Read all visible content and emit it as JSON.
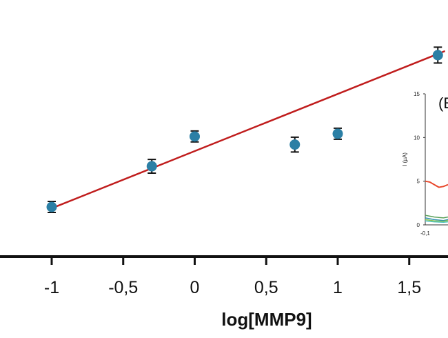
{
  "chart_data": [
    {
      "type": "scatter",
      "xlabel": "log[MMP9]",
      "ylabel": "",
      "xlim": [
        -1.36,
        1.75
      ],
      "ylim": [
        4.4,
        12.7
      ],
      "x_ticks": [
        "-1",
        "-0,5",
        "0",
        "0,5",
        "1",
        "1,5"
      ],
      "x_tick_values": [
        -1,
        -0.5,
        0,
        0.5,
        1,
        1.5
      ],
      "series": [
        {
          "x": [
            -1,
            -0.3,
            0,
            0.7,
            1,
            1.7
          ],
          "y": [
            6.1,
            7.6,
            8.7,
            8.4,
            8.8,
            11.7
          ],
          "error": [
            0.05,
            0.1,
            0.05,
            0.12,
            0.05,
            0.14
          ],
          "color": "#2b7fa5"
        }
      ],
      "fit_line": {
        "x": [
          -1,
          1.75
        ],
        "y": [
          6.05,
          11.85
        ],
        "color": "#c01d1d"
      },
      "grid": false
    },
    {
      "type": "line",
      "panel_label": "(E",
      "ylabel": "I (µA)",
      "ylim": [
        0,
        15
      ],
      "y_ticks": [
        "0",
        "5",
        "10",
        "15"
      ],
      "y_tick_values": [
        0,
        5,
        10,
        15
      ],
      "x_ticks": [
        "-0,1"
      ],
      "series": [
        {
          "x": [
            -0.1,
            -0.08,
            -0.06,
            -0.04,
            -0.02,
            0.0
          ],
          "y": [
            5.0,
            4.9,
            4.6,
            4.3,
            4.4,
            4.6
          ],
          "color": "#e8472b"
        },
        {
          "x": [
            -0.1,
            -0.06,
            -0.02,
            0.0
          ],
          "y": [
            1.1,
            0.9,
            0.8,
            0.9
          ],
          "color": "#5aa05a"
        },
        {
          "x": [
            -0.1,
            -0.06,
            -0.02,
            0.0
          ],
          "y": [
            0.8,
            0.6,
            0.5,
            0.6
          ],
          "color": "#2f8fb0"
        },
        {
          "x": [
            -0.1,
            -0.06,
            -0.02,
            0.0
          ],
          "y": [
            0.6,
            0.45,
            0.4,
            0.5
          ],
          "color": "#8bc34a"
        },
        {
          "x": [
            -0.1,
            -0.06,
            -0.02,
            0.0
          ],
          "y": [
            0.45,
            0.35,
            0.3,
            0.35
          ],
          "color": "#4fc3c3"
        }
      ]
    }
  ]
}
